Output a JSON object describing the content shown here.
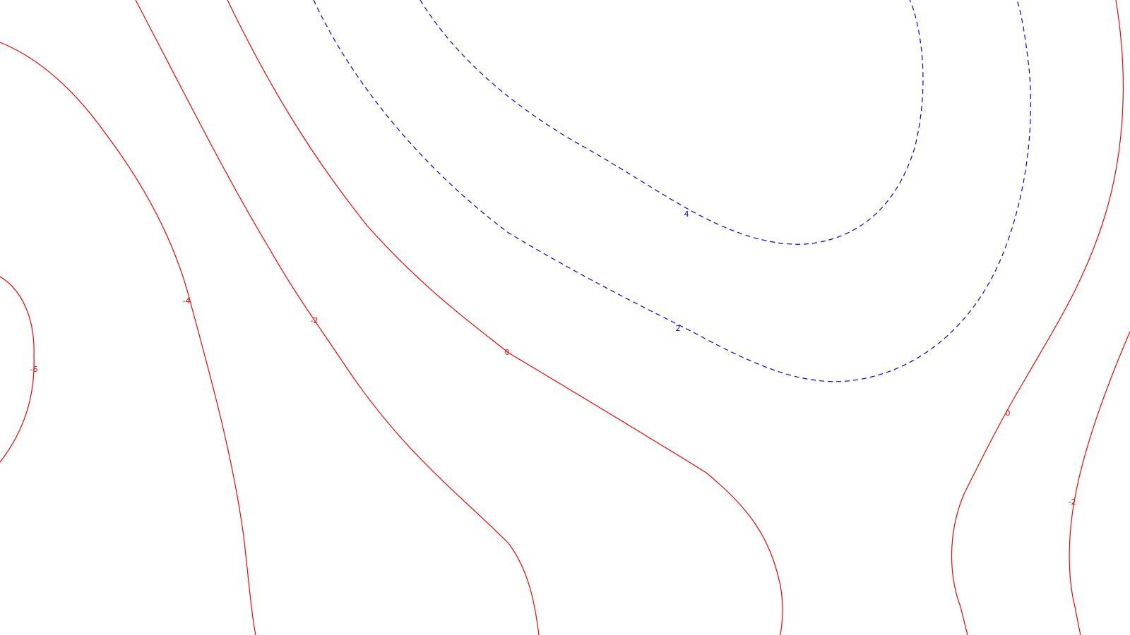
{
  "colors": {
    "background": "#ffffff",
    "negative_or_zero": "#ff0000",
    "positive": "#0000ff"
  },
  "contours": [
    {
      "id": "neg6",
      "value": -6,
      "label": "-6",
      "style": "solid",
      "color": "#ff0000"
    },
    {
      "id": "neg4",
      "value": -4,
      "label": "-4",
      "style": "solid",
      "color": "#ff0000"
    },
    {
      "id": "neg2-left",
      "value": -2,
      "label": "-2",
      "style": "solid",
      "color": "#ff0000"
    },
    {
      "id": "zero-center",
      "value": 0,
      "label": "0",
      "style": "solid",
      "color": "#ff0000"
    },
    {
      "id": "pos2",
      "value": 2,
      "label": "2",
      "style": "dashed",
      "color": "#0000ff"
    },
    {
      "id": "pos4",
      "value": 4,
      "label": "4",
      "style": "dashed",
      "color": "#0000ff"
    },
    {
      "id": "zero-right",
      "value": 0,
      "label": "0",
      "style": "solid",
      "color": "#ff0000"
    },
    {
      "id": "neg2-right",
      "value": -2,
      "label": "-2",
      "style": "solid",
      "color": "#ff0000"
    }
  ]
}
